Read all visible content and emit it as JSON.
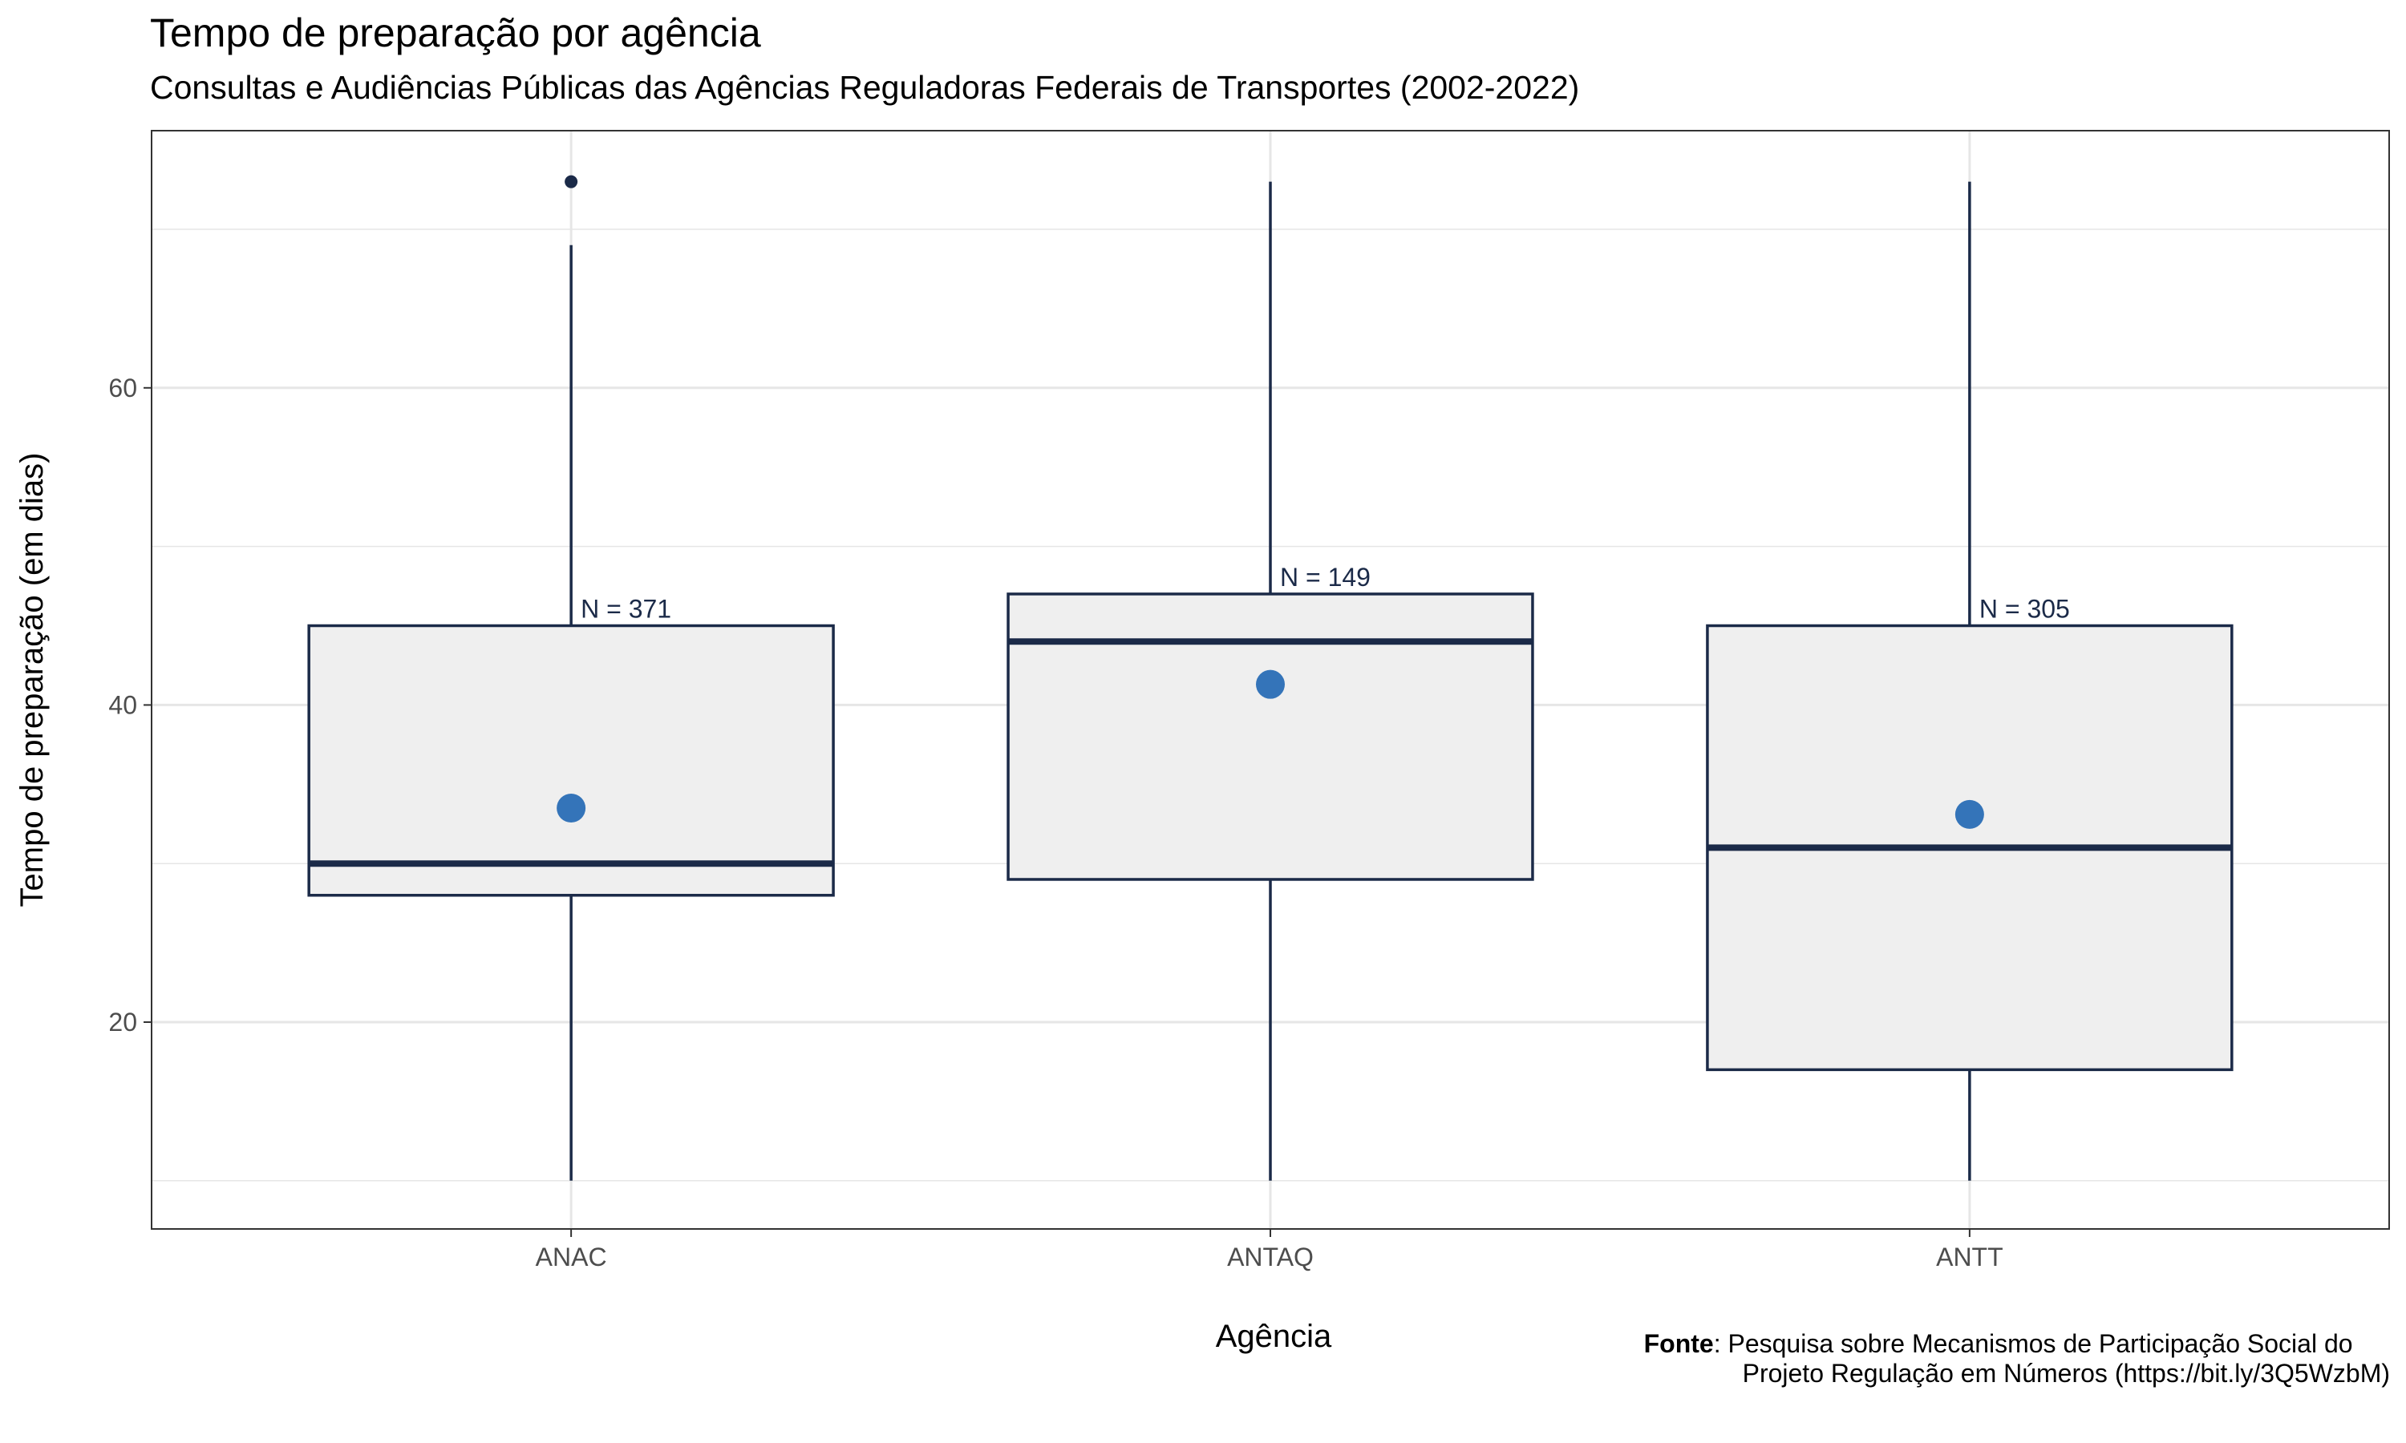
{
  "chart_data": {
    "type": "boxplot",
    "title": "Tempo de preparação por agência",
    "subtitle": "Consultas e Audiências Públicas das Agências Reguladoras Federais de Transportes (2002-2022)",
    "xlabel": "Agência",
    "ylabel": "Tempo de preparação (em dias)",
    "ylim": [
      7,
      76
    ],
    "yticks": [
      20,
      40,
      60
    ],
    "grid": true,
    "categories": [
      "ANAC",
      "ANTAQ",
      "ANTT"
    ],
    "boxes": [
      {
        "category": "ANAC",
        "whisker_low": 10,
        "q1": 28,
        "median": 30,
        "q3": 45,
        "whisker_high": 69,
        "mean": 33.5,
        "outliers": [
          73
        ],
        "n_label": "N = 371"
      },
      {
        "category": "ANTAQ",
        "whisker_low": 10,
        "q1": 29,
        "median": 44,
        "q3": 47,
        "whisker_high": 73,
        "mean": 41.3,
        "outliers": [],
        "n_label": "N = 149"
      },
      {
        "category": "ANTT",
        "whisker_low": 10,
        "q1": 17,
        "median": 31,
        "q3": 45,
        "whisker_high": 73,
        "mean": 33.1,
        "outliers": [],
        "n_label": "N = 305"
      }
    ],
    "colors": {
      "box_fill": "#efefef",
      "box_stroke": "#1b2a48",
      "mean_point": "#3474b9",
      "outlier": "#1b2a48",
      "grid": "#e6e6e6",
      "panel_border": "#333333"
    }
  },
  "caption": {
    "bold_label": "Fonte",
    "line1": ": Pesquisa sobre Mecanismos de Participação Social do",
    "line2": "Projeto Regulação em Números (https://bit.ly/3Q5WzbM)"
  }
}
